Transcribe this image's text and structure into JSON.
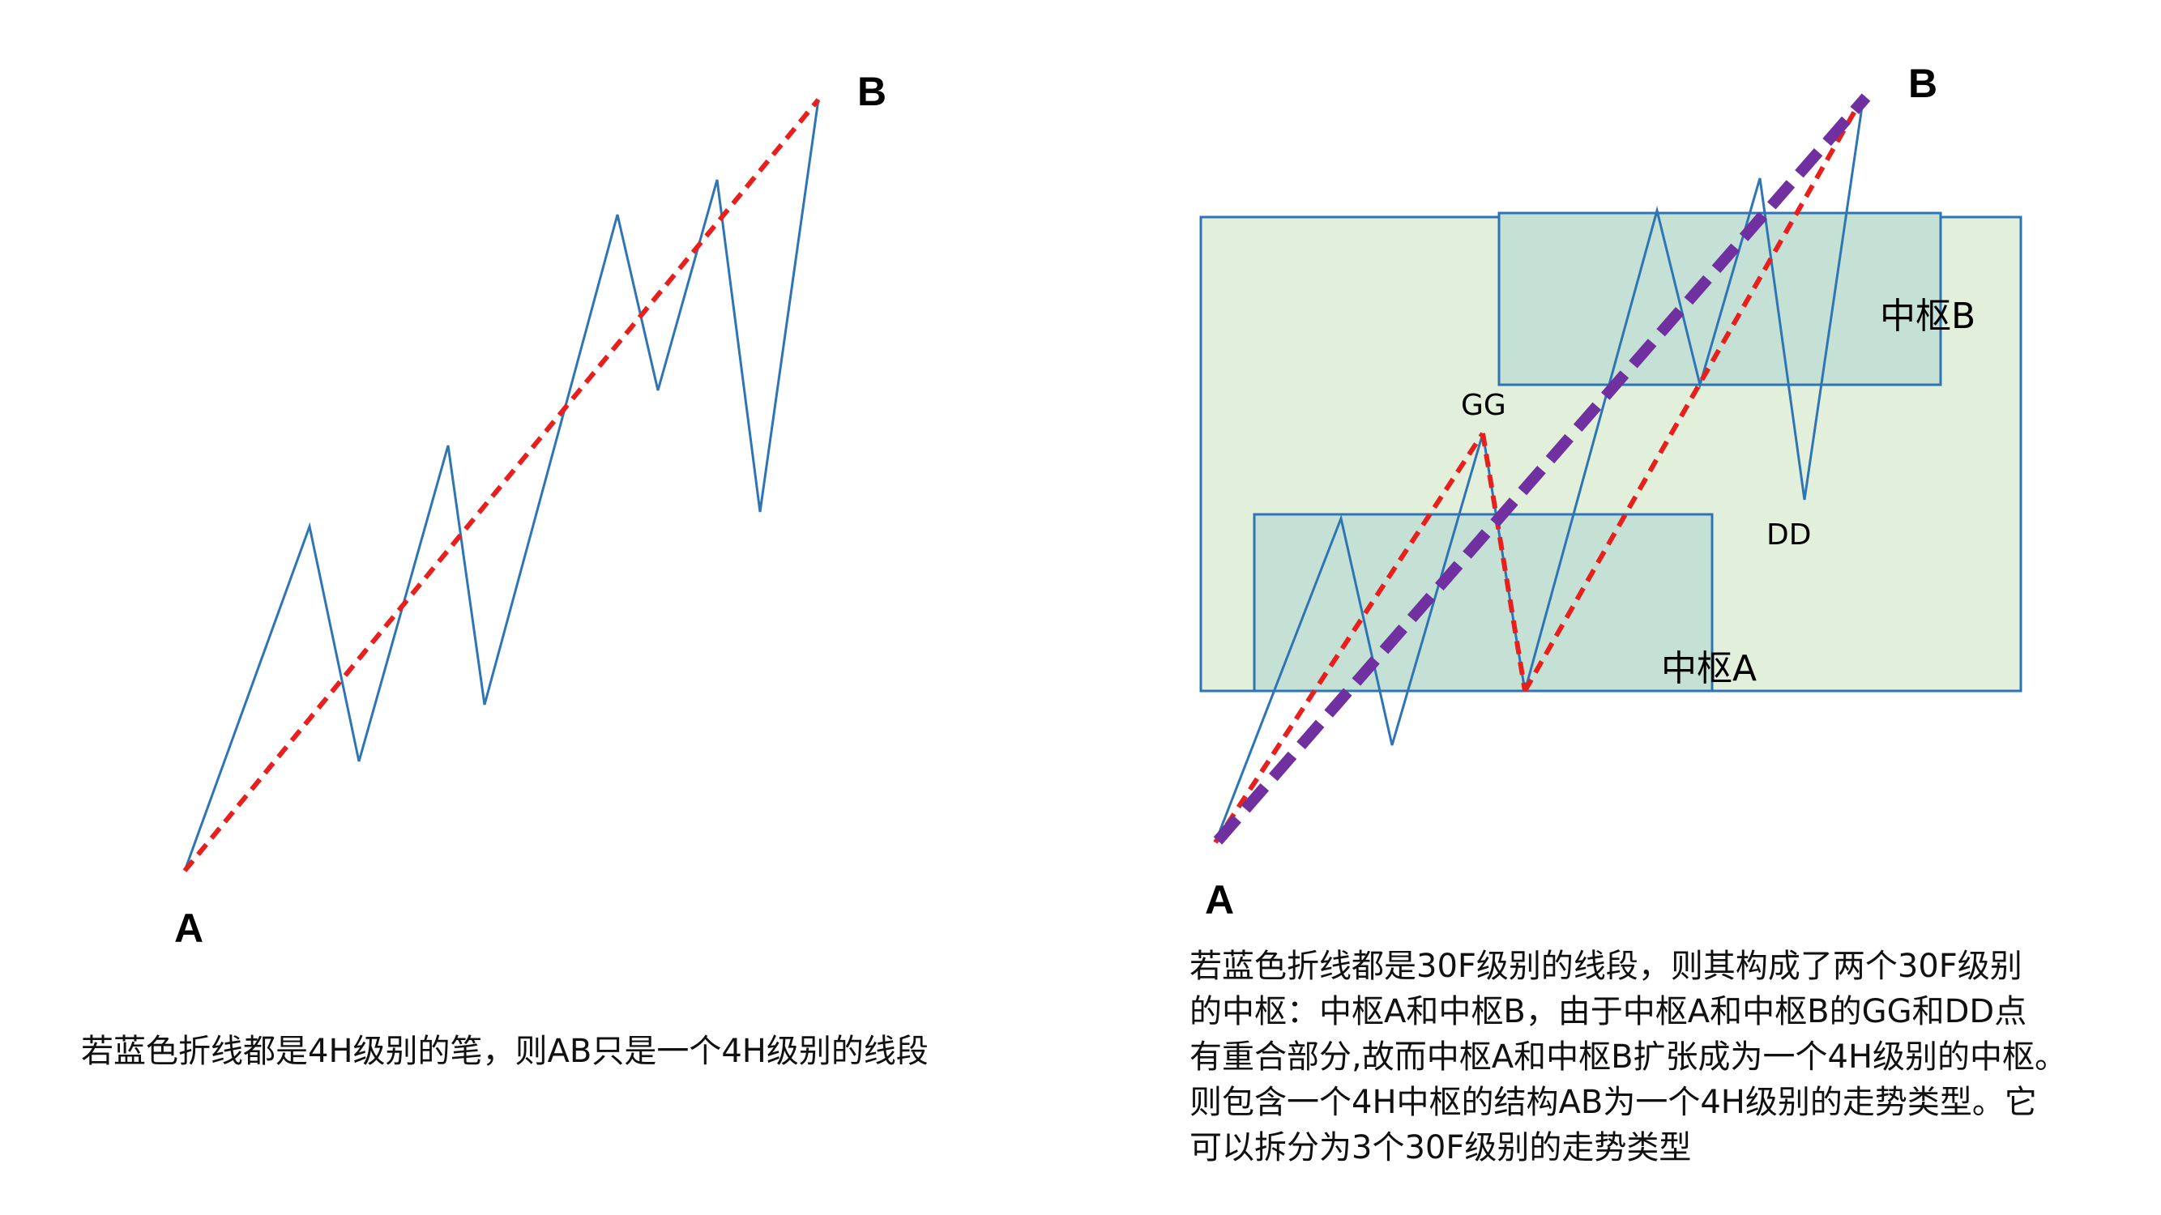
{
  "colors": {
    "blue_line": "#2E75B6",
    "red_dashed": "#E8201D",
    "purple_dashed": "#7030A0",
    "outer_box_fill": "#E2EFDA",
    "outer_box_stroke": "#2E75B6",
    "inner_box_fill": "#C5E0D4"
  },
  "left_diagram": {
    "label_a": "A",
    "label_b": "B",
    "caption": "若蓝色折线都是4H级别的笔，则AB只是一个4H级别的线段"
  },
  "right_diagram": {
    "label_a": "A",
    "label_b": "B",
    "label_gg": "GG",
    "label_dd": "DD",
    "zone_a": "中枢A",
    "zone_b": "中枢B",
    "caption_lines": [
      "若蓝色折线都是30F级别的线段，则其构成了两个30F级别",
      "的中枢：中枢A和中枢B，由于中枢A和中枢B的GG和DD点",
      "有重合部分,故而中枢A和中枢B扩张成为一个4H级别的中枢。",
      "则包含一个4H中枢的结构AB为一个4H级别的走势类型。它",
      "可以拆分为3个30F级别的走势类型"
    ]
  }
}
